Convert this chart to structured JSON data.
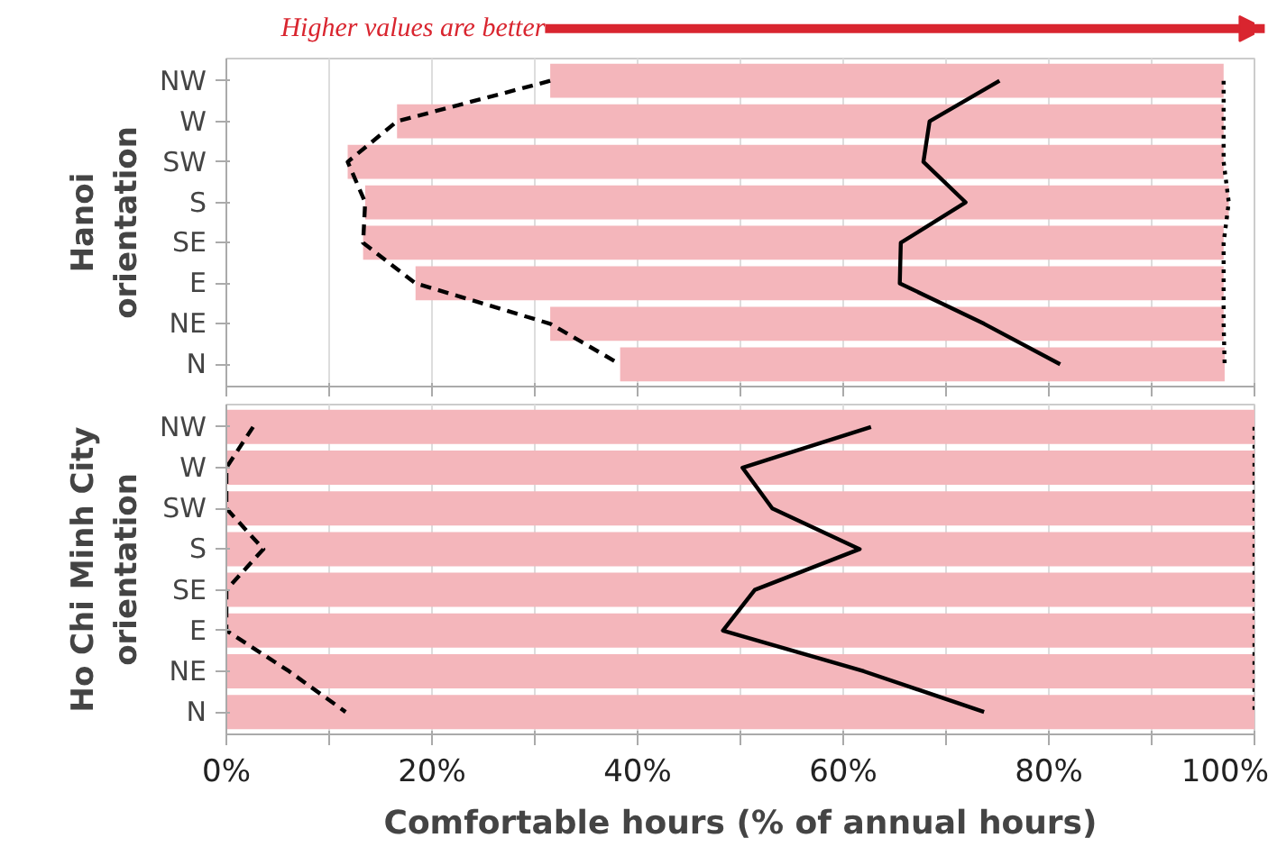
{
  "chart_data": [
    {
      "type": "line",
      "orientation": "horizontal",
      "annotations": [
        "Higher values are better"
      ],
      "ylabel": "Hanoi orientation",
      "categories": [
        "NW",
        "W",
        "SW",
        "S",
        "SE",
        "E",
        "NE",
        "N"
      ],
      "xlim": [
        0,
        100
      ],
      "xticks": [
        0,
        {
          "value": 10,
          "label": null
        },
        20,
        {
          "value": 30,
          "label": null
        },
        40,
        {
          "value": 50,
          "label": null
        },
        60,
        {
          "value": 70,
          "label": null
        },
        80,
        {
          "value": 90,
          "label": null
        },
        100
      ],
      "grid": "x",
      "tick_labels": "y",
      "marker": "none",
      "series": [
        {
          "type": "bar",
          "color": "#f4b6bb",
          "base": [
            31.5,
            16.6,
            11.8,
            13.5,
            13.3,
            18.4,
            31.5,
            38.3
          ],
          "values": [
            65.5,
            80.4,
            85.2,
            84,
            83.7,
            78.6,
            65.5,
            58.8
          ]
        },
        {
          "color": "#000000",
          "line_style": "dashed",
          "values": [
            31.5,
            16.6,
            11.8,
            13.5,
            13.3,
            18.4,
            31.5,
            38.3
          ]
        },
        {
          "color": "#000000",
          "line_style": "solid",
          "values": [
            75.2,
            68.4,
            67.8,
            71.9,
            65.6,
            65.5,
            73.7,
            81.1
          ]
        },
        {
          "color": "#000000",
          "line_style": "dotted",
          "values": [
            97,
            97,
            97,
            97.5,
            97,
            97,
            97,
            97.1
          ]
        }
      ]
    },
    {
      "type": "line",
      "orientation": "horizontal",
      "ylabel": "Ho Chi Minh City orientation",
      "xlabel": "Comfortable hours (% of annual hours)",
      "categories": [
        "NW",
        "W",
        "SW",
        "S",
        "SE",
        "E",
        "NE",
        "N"
      ],
      "xlim": [
        0,
        100
      ],
      "xticks": [
        {
          "value": 0,
          "label": "0%"
        },
        {
          "value": 10,
          "label": null
        },
        {
          "value": 20,
          "label": "20%"
        },
        {
          "value": 30,
          "label": null
        },
        {
          "value": 40,
          "label": "40%"
        },
        {
          "value": 50,
          "label": null
        },
        {
          "value": 60,
          "label": "60%"
        },
        {
          "value": 70,
          "label": null
        },
        {
          "value": 80,
          "label": "80%"
        },
        {
          "value": 90,
          "label": null
        },
        {
          "value": 100,
          "label": "100%"
        }
      ],
      "grid": "x",
      "marker": "none",
      "series": [
        {
          "type": "bar",
          "color": "#f4b6bb",
          "base": [
            0,
            0,
            0,
            0,
            0,
            0,
            0,
            0
          ],
          "values": [
            100,
            100,
            100,
            100,
            100,
            100,
            100,
            100
          ]
        },
        {
          "color": "#000000",
          "line_style": "dashed",
          "values": [
            2.6,
            0,
            0,
            3.6,
            0,
            0,
            6.1,
            11.6
          ]
        },
        {
          "color": "#000000",
          "line_style": "solid",
          "values": [
            62.7,
            50.2,
            53.1,
            61.6,
            51.4,
            48.3,
            62,
            73.7
          ]
        },
        {
          "color": "#000000",
          "line_style": "dotted",
          "values": [
            100,
            100,
            100,
            100,
            100,
            100,
            100,
            100
          ]
        }
      ]
    }
  ]
}
